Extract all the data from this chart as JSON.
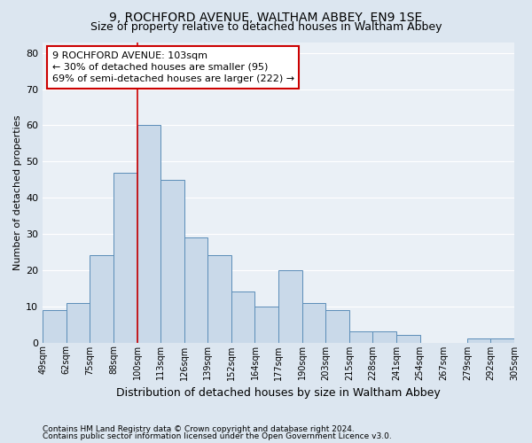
{
  "title1": "9, ROCHFORD AVENUE, WALTHAM ABBEY, EN9 1SE",
  "title2": "Size of property relative to detached houses in Waltham Abbey",
  "xlabel": "Distribution of detached houses by size in Waltham Abbey",
  "ylabel": "Number of detached properties",
  "bar_values": [
    9,
    11,
    24,
    47,
    60,
    45,
    29,
    24,
    14,
    10,
    20,
    11,
    9,
    3,
    3,
    2,
    0,
    0,
    1,
    1
  ],
  "tick_labels": [
    "49sqm",
    "62sqm",
    "75sqm",
    "88sqm",
    "100sqm",
    "113sqm",
    "126sqm",
    "139sqm",
    "152sqm",
    "164sqm",
    "177sqm",
    "190sqm",
    "203sqm",
    "215sqm",
    "228sqm",
    "241sqm",
    "254sqm",
    "267sqm",
    "279sqm",
    "292sqm",
    "305sqm"
  ],
  "bar_color": "#c9d9e9",
  "bar_edge_color": "#5b8db8",
  "vline_x": 4.0,
  "vline_color": "#cc0000",
  "ylim": [
    0,
    83
  ],
  "yticks": [
    0,
    10,
    20,
    30,
    40,
    50,
    60,
    70,
    80
  ],
  "annotation_text": "9 ROCHFORD AVENUE: 103sqm\n← 30% of detached houses are smaller (95)\n69% of semi-detached houses are larger (222) →",
  "annotation_box_facecolor": "white",
  "annotation_box_edgecolor": "#cc0000",
  "footnote1": "Contains HM Land Registry data © Crown copyright and database right 2024.",
  "footnote2": "Contains public sector information licensed under the Open Government Licence v3.0.",
  "fig_facecolor": "#dce6f0",
  "ax_facecolor": "#eaf0f6",
  "grid_color": "#ffffff",
  "title1_fontsize": 10,
  "title2_fontsize": 9,
  "ylabel_fontsize": 8,
  "xlabel_fontsize": 9,
  "tick_fontsize": 7,
  "annot_fontsize": 8,
  "footnote_fontsize": 6.5
}
